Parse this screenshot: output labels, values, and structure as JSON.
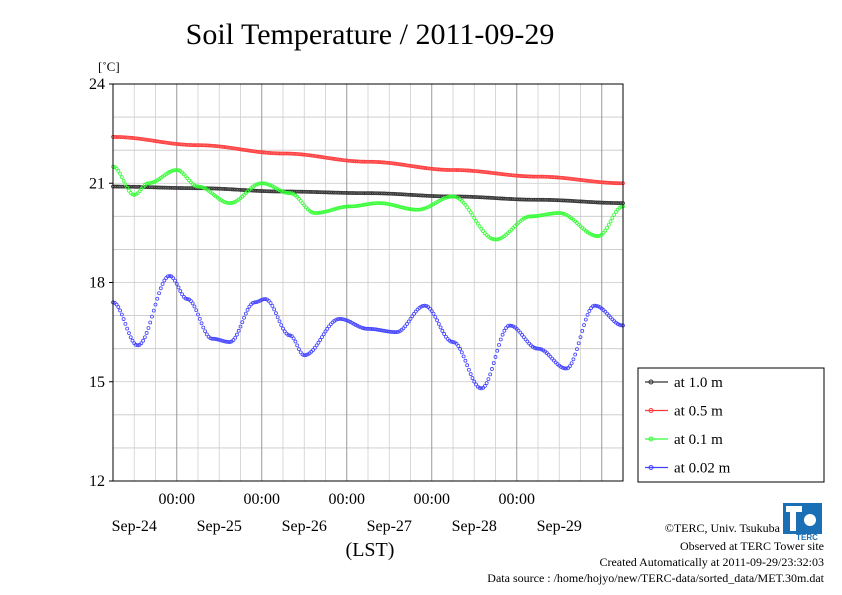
{
  "chart_data": {
    "type": "line",
    "title": "Soil Temperature / 2011-09-29",
    "ylabel": "[˚C]",
    "xlabel": "(LST)",
    "ylim": [
      12,
      24
    ],
    "yticks": [
      "24",
      "21",
      "18",
      "15",
      "12"
    ],
    "x_time_labels": [
      "00:00",
      "00:00",
      "00:00",
      "00:00",
      "00:00"
    ],
    "x_date_labels": [
      "Sep-24",
      "Sep-25",
      "Sep-26",
      "Sep-27",
      "Sep-28",
      "Sep-29"
    ],
    "xrange_hours": [
      0,
      144
    ],
    "grid": true,
    "legend_position": "right",
    "series": [
      {
        "name": "at 1.0 m",
        "color": "#333333",
        "points": [
          [
            0,
            20.9
          ],
          [
            24,
            20.85
          ],
          [
            48,
            20.75
          ],
          [
            72,
            20.7
          ],
          [
            96,
            20.6
          ],
          [
            120,
            20.5
          ],
          [
            144,
            20.4
          ]
        ]
      },
      {
        "name": "at 0.5 m",
        "color": "#ff3b3b",
        "points": [
          [
            0,
            22.4
          ],
          [
            24,
            22.15
          ],
          [
            48,
            21.9
          ],
          [
            72,
            21.65
          ],
          [
            96,
            21.4
          ],
          [
            120,
            21.2
          ],
          [
            144,
            21.0
          ]
        ]
      },
      {
        "name": "at 0.1 m",
        "color": "#33ff33",
        "points": [
          [
            0,
            21.5
          ],
          [
            6,
            20.65
          ],
          [
            10,
            21
          ],
          [
            18,
            21.4
          ],
          [
            24,
            20.9
          ],
          [
            33,
            20.4
          ],
          [
            42,
            21
          ],
          [
            50,
            20.7
          ],
          [
            57,
            20.1
          ],
          [
            67,
            20.3
          ],
          [
            75,
            20.4
          ],
          [
            86,
            20.2
          ],
          [
            96,
            20.6
          ],
          [
            108,
            19.3
          ],
          [
            118,
            20
          ],
          [
            126,
            20.1
          ],
          [
            137,
            19.4
          ],
          [
            144,
            20.3
          ]
        ]
      },
      {
        "name": "at 0.02 m",
        "color": "#4040ff",
        "points": [
          [
            0,
            17.4
          ],
          [
            7,
            16.1
          ],
          [
            16,
            18.2
          ],
          [
            21,
            17.5
          ],
          [
            28,
            16.3
          ],
          [
            33,
            16.2
          ],
          [
            40,
            17.4
          ],
          [
            43,
            17.5
          ],
          [
            50,
            16.4
          ],
          [
            54,
            15.8
          ],
          [
            64,
            16.9
          ],
          [
            72,
            16.6
          ],
          [
            80,
            16.5
          ],
          [
            88,
            17.3
          ],
          [
            96,
            16.2
          ],
          [
            104,
            14.8
          ],
          [
            112,
            16.7
          ],
          [
            120,
            16
          ],
          [
            128,
            15.4
          ],
          [
            136,
            17.3
          ],
          [
            144,
            16.7
          ]
        ]
      }
    ]
  },
  "credits": {
    "copyright": "©TERC, Univ. Tsukuba",
    "observed": "Observed at TERC Tower site",
    "created": "Created Automatically at 2011-09-29/23:32:03",
    "source": "Data source : /home/hojyo/new/TERC-data/sorted_data/MET.30m.dat"
  },
  "logo": {
    "label": "TERC"
  }
}
